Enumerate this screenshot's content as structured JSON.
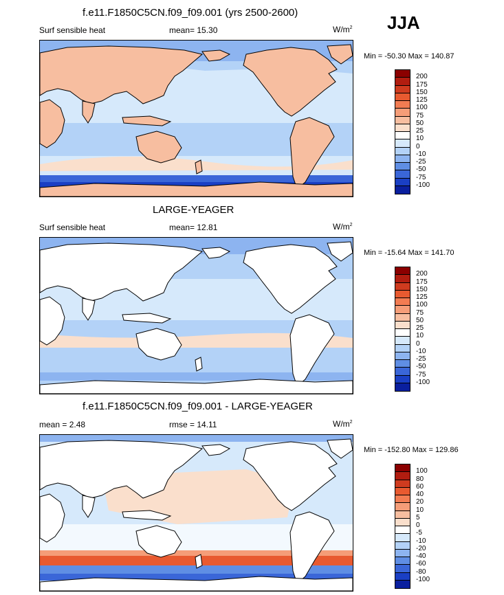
{
  "season": "JJA",
  "panels": [
    {
      "title": "f.e11.F1850C5CN.f09_f09.001 (yrs 2500-2600)",
      "left_label": "Surf sensible heat",
      "mean_label": "mean=  15.30",
      "units": "W/m",
      "units_exp": "2",
      "minmax": "Min = -50.30 Max = 140.87",
      "land": "filled",
      "colorbar": {
        "labels": [
          "200",
          "175",
          "150",
          "125",
          "100",
          "75",
          "50",
          "25",
          "10",
          "0",
          "-10",
          "-25",
          "-50",
          "-75",
          "-100"
        ],
        "colors": [
          "#8b0000",
          "#b11d10",
          "#cf3b1f",
          "#e85a30",
          "#f27c52",
          "#f59d78",
          "#f7bea0",
          "#fadfcc",
          "#ffffff",
          "#d6e9fb",
          "#b3d2f7",
          "#8db4f0",
          "#5f8ee4",
          "#3a66d8",
          "#1a3fc4",
          "#0a1f9e"
        ]
      }
    },
    {
      "title": "LARGE-YEAGER",
      "left_label": "Surf sensible heat",
      "mean_label": "mean=  12.81",
      "units": "W/m",
      "units_exp": "2",
      "minmax": "Min = -15.64 Max = 141.70",
      "land": "blank",
      "colorbar": {
        "labels": [
          "200",
          "175",
          "150",
          "125",
          "100",
          "75",
          "50",
          "25",
          "10",
          "0",
          "-10",
          "-25",
          "-50",
          "-75",
          "-100"
        ],
        "colors": [
          "#8b0000",
          "#b11d10",
          "#cf3b1f",
          "#e85a30",
          "#f27c52",
          "#f59d78",
          "#f7bea0",
          "#fadfcc",
          "#ffffff",
          "#d6e9fb",
          "#b3d2f7",
          "#8db4f0",
          "#5f8ee4",
          "#3a66d8",
          "#1a3fc4",
          "#0a1f9e"
        ]
      }
    },
    {
      "title": "f.e11.F1850C5CN.f09_f09.001 - LARGE-YEAGER",
      "left_label": "mean =   2.48",
      "mean_label": "rmse =  14.11",
      "units": "W/m",
      "units_exp": "2",
      "minmax": "Min = -152.80 Max = 129.86",
      "land": "blank",
      "colorbar": {
        "labels": [
          "100",
          "80",
          "60",
          "40",
          "20",
          "10",
          "5",
          "0",
          "-5",
          "-10",
          "-20",
          "-40",
          "-60",
          "-80",
          "-100"
        ],
        "colors": [
          "#8b0000",
          "#b11d10",
          "#cf3b1f",
          "#e85a30",
          "#f27c52",
          "#f59d78",
          "#f7bea0",
          "#fadfcc",
          "#ffffff",
          "#d6e9fb",
          "#b3d2f7",
          "#8db4f0",
          "#5f8ee4",
          "#3a66d8",
          "#1a3fc4",
          "#0a1f9e"
        ]
      }
    }
  ],
  "chart_data": {
    "type": "heatmap",
    "variable": "Surf sensible heat",
    "season": "JJA",
    "units": "W/m2",
    "maps": [
      {
        "title": "f.e11.F1850C5CN.f09_f09.001 (yrs 2500-2600)",
        "mean": 15.3,
        "min": -50.3,
        "max": 140.87,
        "levels": [
          -100,
          -75,
          -50,
          -25,
          -10,
          0,
          10,
          25,
          50,
          75,
          100,
          125,
          150,
          175,
          200
        ]
      },
      {
        "title": "LARGE-YEAGER",
        "mean": 12.81,
        "min": -15.64,
        "max": 141.7,
        "levels": [
          -100,
          -75,
          -50,
          -25,
          -10,
          0,
          10,
          25,
          50,
          75,
          100,
          125,
          150,
          175,
          200
        ]
      },
      {
        "title": "f.e11.F1850C5CN.f09_f09.001 - LARGE-YEAGER",
        "mean": 2.48,
        "rmse": 14.11,
        "min": -152.8,
        "max": 129.86,
        "levels": [
          -100,
          -80,
          -60,
          -40,
          -20,
          -10,
          -5,
          0,
          5,
          10,
          20,
          40,
          60,
          80,
          100
        ]
      }
    ]
  }
}
